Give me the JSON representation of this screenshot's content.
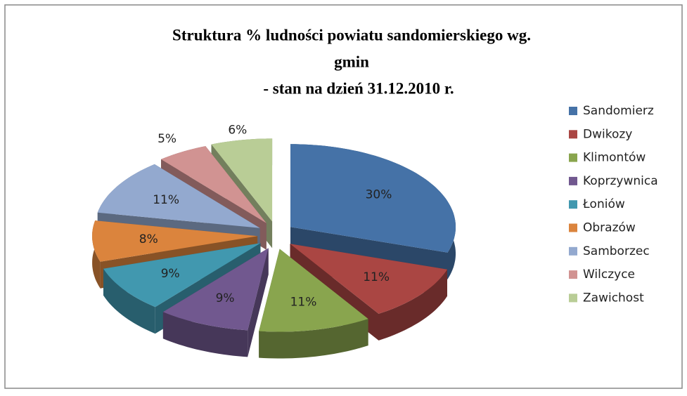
{
  "chart_data": {
    "type": "pie3d",
    "title": [
      "Struktura % ludności powiatu sandomierskiego wg.",
      "gmin",
      "- stan na dzień 31.12.2010 r."
    ],
    "categories": [
      "Sandomierz",
      "Dwikozy",
      "Klimontów",
      "Koprzywnica",
      "Łoniów",
      "Obrazów",
      "Samborzec",
      "Wilczyce",
      "Zawichost"
    ],
    "values": [
      30,
      11,
      11,
      9,
      9,
      8,
      11,
      5,
      6
    ],
    "value_labels": [
      "30%",
      "11%",
      "11%",
      "9%",
      "9%",
      "8%",
      "11%",
      "5%",
      "6%"
    ],
    "colors": [
      "#4572A7",
      "#AA4643",
      "#89A54E",
      "#71588F",
      "#4198AF",
      "#DB843D",
      "#93A9CF",
      "#D19392",
      "#B9CD96"
    ],
    "legend": "right"
  }
}
